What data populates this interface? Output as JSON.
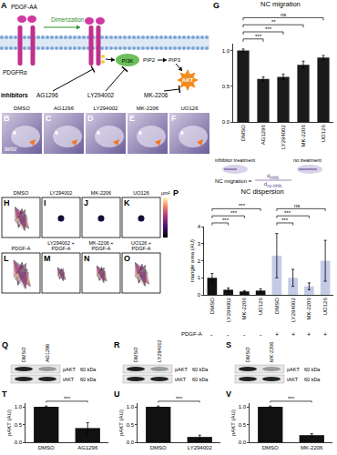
{
  "diagram": {
    "panel": "A",
    "ligand": "PDGF-AA",
    "dimerization": "Dimerization",
    "receptor": "PDGFRα",
    "pi3k": "PI3K",
    "pip2": "PIP2",
    "pip3": "PIP3",
    "akt": "AKT",
    "inhibitors_label": "inhibitors",
    "inhibitors": [
      "AG1296",
      "LY294002",
      "MK-2206"
    ]
  },
  "embryo_images": {
    "panels": [
      "B",
      "C",
      "D",
      "E",
      "F"
    ],
    "labels": [
      "DMSO",
      "AG1296",
      "LY294002",
      "MK-2206",
      "UO126"
    ],
    "stain": "twist"
  },
  "migration_key": {
    "treated": "inhibitor treatment",
    "untreated": "no treatment",
    "formula_lhs": "NC migration =",
    "numerator": "d",
    "numerator_sub": "inhib.",
    "denominator": "d",
    "denominator_sub": "no inhib."
  },
  "dispersion_images": {
    "panels": [
      "H",
      "I",
      "J",
      "K",
      "L",
      "M",
      "N",
      "O"
    ],
    "labels": [
      [
        "DMSO"
      ],
      [
        "LY294002"
      ],
      [
        "MK-2206"
      ],
      [
        "UO126"
      ],
      [
        "PDGF-A"
      ],
      [
        "LY294002 +",
        "PDGF-A"
      ],
      [
        "MK-2206 +",
        "PDGF-A"
      ],
      [
        "UO126 +",
        "PDGF-A"
      ]
    ],
    "colorbar_unit": "μm²"
  },
  "blots": [
    {
      "panel": "Q",
      "lanes": [
        "DMSO",
        "AG1296"
      ],
      "rows": [
        {
          "name": "pAKT",
          "size": "60 kDa"
        },
        {
          "name": "tAKT",
          "size": "60 kDa"
        }
      ]
    },
    {
      "panel": "R",
      "lanes": [
        "DMSO",
        "LY294002"
      ],
      "rows": [
        {
          "name": "pAKT",
          "size": "60 kDa"
        },
        {
          "name": "tAKT",
          "size": "60 kDa"
        }
      ]
    },
    {
      "panel": "S",
      "lanes": [
        "DMSO",
        "MK-2206"
      ],
      "rows": [
        {
          "name": "pAKT",
          "size": "60 kDa"
        },
        {
          "name": "tAKT",
          "size": "60 kDa"
        }
      ]
    }
  ],
  "chart_data": [
    {
      "panel": "G",
      "type": "bar",
      "title": "NC migration",
      "categories": [
        "DMSO",
        "AG1296",
        "LY294002",
        "MK-2206",
        "UO126"
      ],
      "values": [
        1.0,
        0.6,
        0.63,
        0.8,
        0.9
      ],
      "errors": [
        0.02,
        0.03,
        0.04,
        0.05,
        0.03
      ],
      "color": "#1a1a1a",
      "ylim": [
        0,
        1.1
      ],
      "yticks": [
        {
          "value": 0,
          "label": "0.0"
        },
        0.5,
        {
          "value": 1,
          "label": "1.0"
        }
      ],
      "grid": false,
      "brackets": [
        {
          "between": [
            0,
            1
          ],
          "label": "***"
        },
        {
          "between": [
            0,
            2
          ],
          "label": "***"
        },
        {
          "between": [
            0,
            3
          ],
          "label": "**"
        },
        {
          "between": [
            0,
            4
          ],
          "label": "ns"
        }
      ]
    },
    {
      "panel": "P",
      "type": "bar",
      "title": "NC dispersion",
      "ytitle": "triangle area (AU)",
      "categories": [
        "DMSO",
        "LY294002",
        "MK-2206",
        "UO126",
        "DMSO",
        "LY294002",
        "MK-2206",
        "UO126"
      ],
      "values": [
        1.0,
        0.3,
        0.2,
        0.25,
        2.3,
        1.0,
        0.5,
        2.0
      ],
      "errors": [
        0.25,
        0.1,
        0.05,
        0.1,
        1.3,
        0.5,
        0.2,
        1.2
      ],
      "colors": [
        "#111111",
        "#111111",
        "#111111",
        "#111111",
        "#c5cbe6",
        "#c5cbe6",
        "#c5cbe6",
        "#c5cbe6"
      ],
      "ylim": [
        0,
        4
      ],
      "yticks": [
        0,
        1,
        2,
        3,
        4
      ],
      "grid": false,
      "treatment": {
        "label": "PDGF-A",
        "values": [
          "-",
          "-",
          "-",
          "-",
          "+",
          "+",
          "+",
          "+"
        ]
      },
      "brackets": [
        {
          "between": [
            0,
            1
          ],
          "label": "***"
        },
        {
          "between": [
            0,
            2
          ],
          "label": "***"
        },
        {
          "between": [
            0,
            3
          ],
          "label": "***"
        },
        {
          "between": [
            4,
            5
          ],
          "label": "***"
        },
        {
          "between": [
            4,
            6
          ],
          "label": "***"
        },
        {
          "between": [
            4,
            7
          ],
          "label": "ns"
        }
      ]
    },
    {
      "panel": "T",
      "type": "bar",
      "ytitle": "pAKT (AU)",
      "categories": [
        "DMSO",
        "AG1296"
      ],
      "values": [
        1.0,
        0.4
      ],
      "errors": [
        0.02,
        0.15
      ],
      "color": "#111111",
      "ylim": [
        0,
        1.1
      ],
      "yticks": [
        {
          "value": 0,
          "label": "0.0"
        },
        0.5,
        {
          "value": 1,
          "label": "1.0"
        }
      ],
      "grid": false,
      "brackets": [
        {
          "between": [
            0,
            1
          ],
          "label": "***"
        }
      ]
    },
    {
      "panel": "U",
      "type": "bar",
      "ytitle": "pAKT (AU)",
      "categories": [
        "DMSO",
        "LY294002"
      ],
      "values": [
        1.0,
        0.15
      ],
      "errors": [
        0.02,
        0.05
      ],
      "color": "#111111",
      "ylim": [
        0,
        1.1
      ],
      "yticks": [
        {
          "value": 0,
          "label": "0.0"
        },
        0.5,
        {
          "value": 1,
          "label": "1.0"
        }
      ],
      "grid": false,
      "brackets": [
        {
          "between": [
            0,
            1
          ],
          "label": "***"
        }
      ]
    },
    {
      "panel": "V",
      "type": "bar",
      "ytitle": "pAKT (AU)",
      "categories": [
        "DMSO",
        "MK-2206"
      ],
      "values": [
        1.0,
        0.2
      ],
      "errors": [
        0.02,
        0.04
      ],
      "color": "#111111",
      "ylim": [
        0,
        1.1
      ],
      "yticks": [
        {
          "value": 0,
          "label": "0.0"
        },
        0.5,
        {
          "value": 1,
          "label": "1.0"
        }
      ],
      "grid": false,
      "brackets": [
        {
          "between": [
            0,
            1
          ],
          "label": "***"
        }
      ]
    }
  ]
}
